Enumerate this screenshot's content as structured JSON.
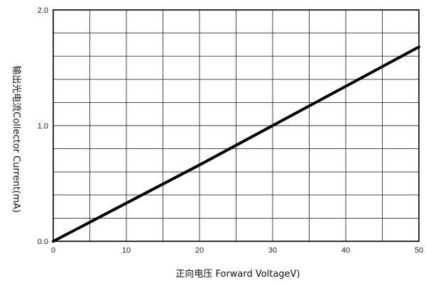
{
  "chart_data": {
    "type": "line",
    "xlabel": "正向电压  Forward VoltageV)",
    "ylabel": "输出光电流Collector  Current(mA)",
    "xlim": [
      0,
      50
    ],
    "ylim": [
      0,
      2.0
    ],
    "x_ticks": [
      "0",
      "10",
      "20",
      "30",
      "40",
      "50"
    ],
    "y_ticks": [
      "0.0",
      "1.0",
      "2.0"
    ],
    "grid": true,
    "series": [
      {
        "x": [
          0,
          10,
          20,
          30,
          40,
          50
        ],
        "y": [
          0.0,
          0.33,
          0.66,
          1.0,
          1.34,
          1.68
        ]
      }
    ]
  }
}
